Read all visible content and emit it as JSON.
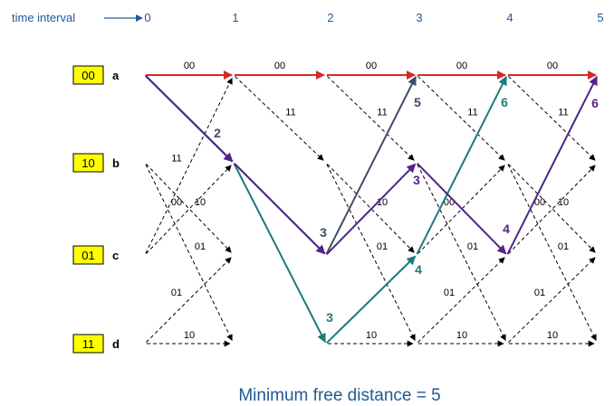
{
  "time_axis": {
    "label": "time interval",
    "ticks": [
      "0",
      "1",
      "2",
      "3",
      "4",
      "5"
    ]
  },
  "states": [
    {
      "code": "00",
      "name": "a"
    },
    {
      "code": "10",
      "name": "b"
    },
    {
      "code": "01",
      "name": "c"
    },
    {
      "code": "11",
      "name": "d"
    }
  ],
  "branch_outputs": {
    "a_to_a": "00",
    "a_to_b": "11",
    "b_to_c": "10",
    "b_to_d": "01",
    "c_to_a": "11",
    "c_to_b": "00",
    "d_to_c": "01",
    "d_to_d": "10"
  },
  "colors": {
    "red": "#d42a2a",
    "slate": "#3d4b6b",
    "teal": "#1a7b7b",
    "purple": "#52238a",
    "dashed": "#000000",
    "state_box": "#ffff00",
    "tick_text": "#1f5a96"
  },
  "paths": [
    {
      "id": "all-zero",
      "color": "red",
      "states": [
        "a",
        "a",
        "a",
        "a",
        "a",
        "a"
      ]
    },
    {
      "id": "slate",
      "color": "slate",
      "states": [
        "a",
        "b",
        "c",
        "a"
      ]
    },
    {
      "id": "teal",
      "color": "teal",
      "states": [
        "a",
        "b",
        "d",
        "c",
        "a"
      ]
    },
    {
      "id": "purple",
      "color": "purple",
      "states": [
        "a",
        "b",
        "c",
        "b",
        "c",
        "a"
      ]
    }
  ],
  "metric_labels": [
    {
      "text": "2",
      "color": "slate"
    },
    {
      "text": "3",
      "color": "slate"
    },
    {
      "text": "5",
      "color": "slate"
    },
    {
      "text": "3",
      "color": "teal"
    },
    {
      "text": "4",
      "color": "teal"
    },
    {
      "text": "6",
      "color": "teal"
    },
    {
      "text": "3",
      "color": "purple"
    },
    {
      "text": "4",
      "color": "purple"
    },
    {
      "text": "6",
      "color": "purple"
    }
  ],
  "caption": "Minimum free distance = 5"
}
